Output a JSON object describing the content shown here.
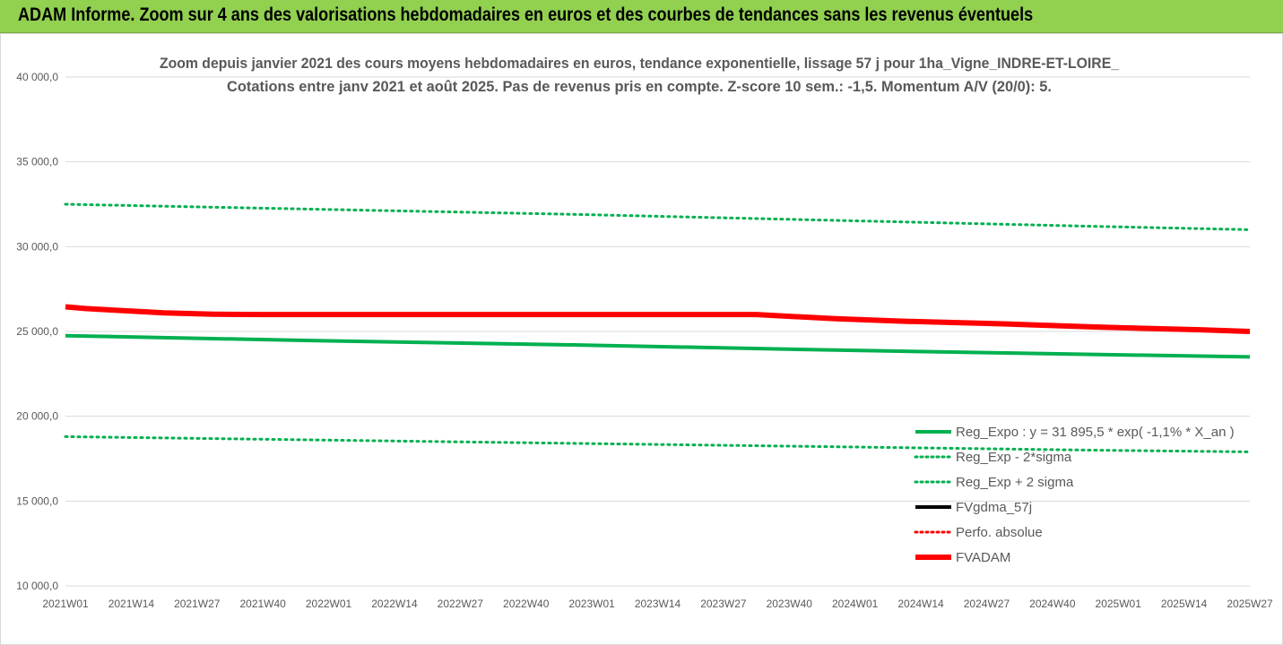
{
  "banner": {
    "text": "ADAM Informe. Zoom sur 4 ans des valorisations hebdomadaires en euros et des courbes de tendances sans les revenus éventuels"
  },
  "colors": {
    "banner_bg": "#92d050",
    "green": "#00b050",
    "red": "#ff0000",
    "black": "#000000",
    "grid": "#d9d9d9"
  },
  "chart_data": {
    "type": "line",
    "title": "Zoom depuis janvier 2021 des cours moyens hebdomadaires en euros, tendance exponentielle, lissage 57 j pour 1ha_Vigne_INDRE-ET-LOIRE_",
    "subtitle": "Cotations entre janv 2021 et août 2025. Pas de revenus pris en compte. Z-score 10 sem.: -1,5. Momentum A/V (20/0): 5.",
    "xlabel": "",
    "ylabel": "",
    "ylim": [
      10000,
      40000
    ],
    "y_ticks": [
      "10 000,0",
      "15 000,0",
      "20 000,0",
      "25 000,0",
      "30 000,0",
      "35 000,0",
      "40 000,0"
    ],
    "x_ticks": [
      "2021W01",
      "2021W14",
      "2021W27",
      "2021W40",
      "2022W01",
      "2022W14",
      "2022W27",
      "2022W40",
      "2023W01",
      "2023W14",
      "2023W27",
      "2023W40",
      "2024W01",
      "2024W14",
      "2024W27",
      "2024W40",
      "2025W01",
      "2025W14",
      "2025W27"
    ],
    "grid": "horizontal",
    "legend_position": "bottom-right",
    "series": [
      {
        "name": "Reg_Expo : y = 31 895,5 * exp( -1,1% *  X_an )",
        "color": "#00b050",
        "style": "solid",
        "x": [
          0,
          52,
          104,
          156,
          208,
          240
        ],
        "y": [
          24750,
          24450,
          24200,
          23900,
          23650,
          23500
        ]
      },
      {
        "name": "Reg_Exp - 2*sigma",
        "color": "#00b050",
        "style": "dotted",
        "x": [
          0,
          52,
          104,
          156,
          208,
          240
        ],
        "y": [
          18800,
          18600,
          18400,
          18200,
          18000,
          17900
        ]
      },
      {
        "name": "Reg_Exp + 2 sigma",
        "color": "#00b050",
        "style": "dotted",
        "x": [
          0,
          52,
          104,
          156,
          208,
          240
        ],
        "y": [
          32500,
          32200,
          31900,
          31550,
          31200,
          31000
        ]
      },
      {
        "name": "FVgdma_57j",
        "color": "#000000",
        "style": "solid",
        "x": [],
        "y": []
      },
      {
        "name": "Perfo. absolue",
        "color": "#ff0000",
        "style": "dotted",
        "x": [],
        "y": []
      },
      {
        "name": "FVADAM",
        "color": "#ff0000",
        "style": "solid",
        "x": [
          0,
          4,
          10,
          20,
          30,
          40,
          60,
          80,
          100,
          120,
          140,
          156,
          170,
          190,
          210,
          230,
          240
        ],
        "y": [
          26450,
          26350,
          26250,
          26100,
          26020,
          26000,
          26000,
          26000,
          26000,
          26000,
          26000,
          25750,
          25600,
          25450,
          25250,
          25100,
          25000
        ]
      }
    ]
  }
}
